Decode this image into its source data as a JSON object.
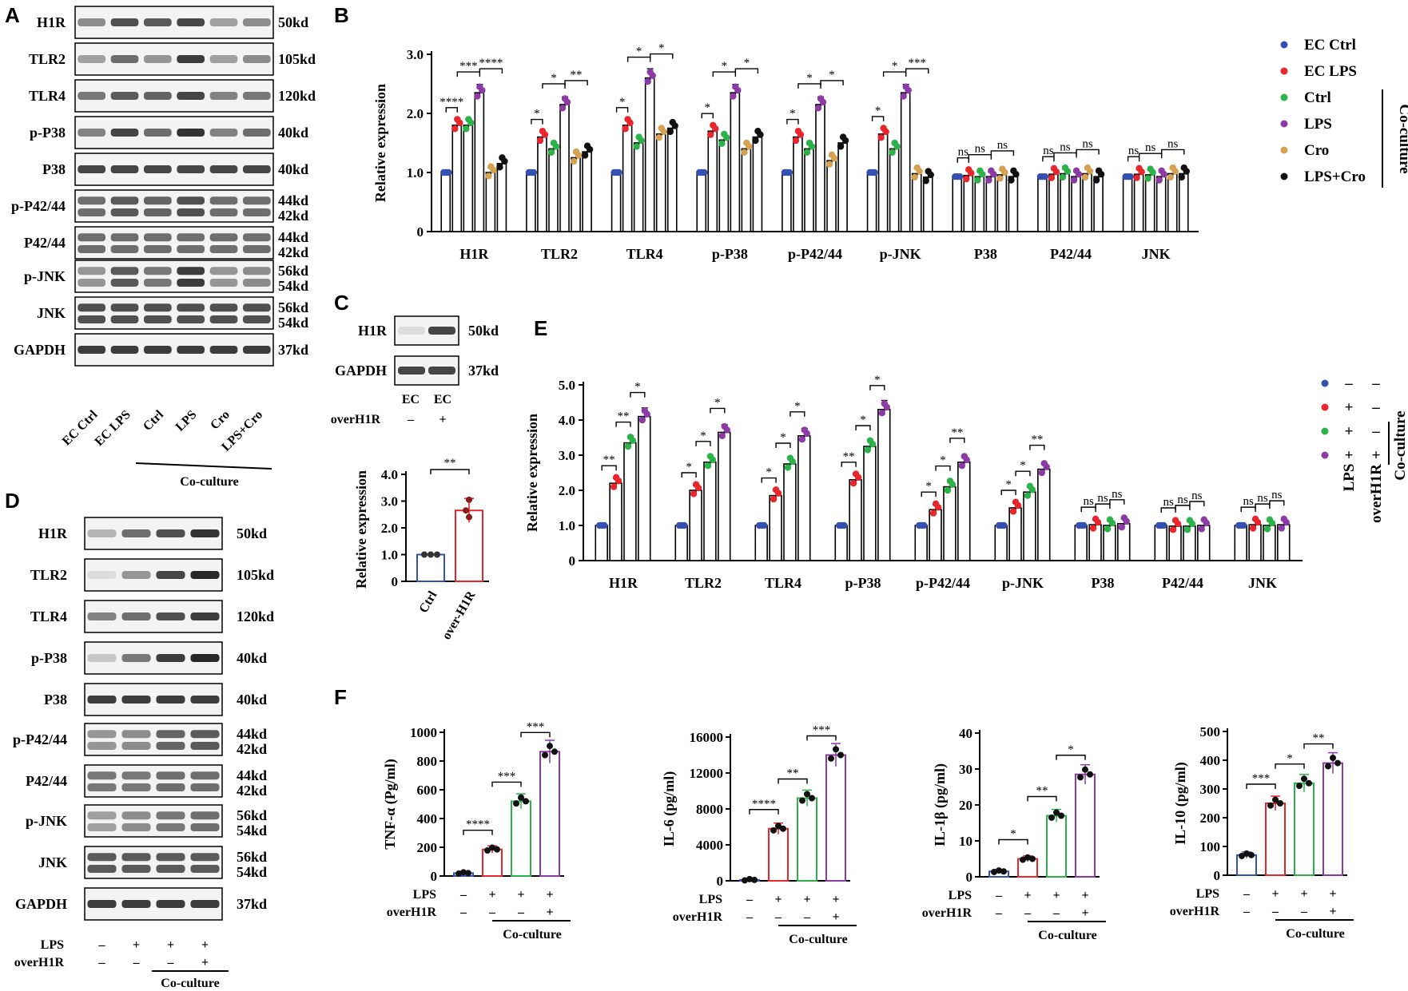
{
  "colors": {
    "ec_ctrl": "#3451b2",
    "ec_lps": "#e8262b",
    "ctrl": "#2bb34a",
    "lps": "#8b3aa6",
    "cro": "#d6a252",
    "lps_cro": "#111111",
    "f_ctrl": "#3451b2",
    "f_lps": "#e8262b",
    "f_cc": "#2bb34a",
    "f_over": "#8b3aa6"
  },
  "panels": {
    "A": {
      "letter": "A",
      "rows": [
        {
          "label": "H1R",
          "mw": [
            "50kd"
          ],
          "bands": 1
        },
        {
          "label": "TLR2",
          "mw": [
            "105kd"
          ],
          "bands": 1
        },
        {
          "label": "TLR4",
          "mw": [
            "120kd"
          ],
          "bands": 1
        },
        {
          "label": "p-P38",
          "mw": [
            "40kd"
          ],
          "bands": 1
        },
        {
          "label": "P38",
          "mw": [
            "40kd"
          ],
          "bands": 1
        },
        {
          "label": "p-P42/44",
          "mw": [
            "44kd",
            "42kd"
          ],
          "bands": 2
        },
        {
          "label": "P42/44",
          "mw": [
            "44kd",
            "42kd"
          ],
          "bands": 2
        },
        {
          "label": "p-JNK",
          "mw": [
            "56kd",
            "54kd"
          ],
          "bands": 2
        },
        {
          "label": "JNK",
          "mw": [
            "56kd",
            "54kd"
          ],
          "bands": 2
        },
        {
          "label": "GAPDH",
          "mw": [
            "37kd"
          ],
          "bands": 1
        }
      ],
      "lanes": [
        "EC Ctrl",
        "EC LPS",
        "Ctrl",
        "LPS",
        "Cro",
        "LPS+Cro"
      ],
      "group_label": "Co-culture"
    },
    "B": {
      "letter": "B",
      "legend": [
        "EC Ctrl",
        "EC LPS",
        "Ctrl",
        "LPS",
        "Cro",
        "LPS+Cro"
      ],
      "legend_group": "Co-culture"
    },
    "C": {
      "letter": "C",
      "blot_rows": [
        {
          "label": "H1R",
          "mw": "50kd"
        },
        {
          "label": "GAPDH",
          "mw": "37kd"
        }
      ],
      "lanes": [
        "EC",
        "EC"
      ],
      "over_label": "overH1R",
      "over_values": [
        "–",
        "+"
      ],
      "sig": "**"
    },
    "D": {
      "letter": "D",
      "rows": [
        {
          "label": "H1R",
          "mw": [
            "50kd"
          ],
          "bands": 1
        },
        {
          "label": "TLR2",
          "mw": [
            "105kd"
          ],
          "bands": 1
        },
        {
          "label": "TLR4",
          "mw": [
            "120kd"
          ],
          "bands": 1
        },
        {
          "label": "p-P38",
          "mw": [
            "40kd"
          ],
          "bands": 1
        },
        {
          "label": "P38",
          "mw": [
            "40kd"
          ],
          "bands": 1
        },
        {
          "label": "p-P42/44",
          "mw": [
            "44kd",
            "42kd"
          ],
          "bands": 2
        },
        {
          "label": "P42/44",
          "mw": [
            "44kd",
            "42kd"
          ],
          "bands": 2
        },
        {
          "label": "p-JNK",
          "mw": [
            "56kd",
            "54kd"
          ],
          "bands": 2
        },
        {
          "label": "JNK",
          "mw": [
            "56kd",
            "54kd"
          ],
          "bands": 2
        },
        {
          "label": "GAPDH",
          "mw": [
            "37kd"
          ],
          "bands": 1
        }
      ],
      "lps_label": "LPS",
      "over_label": "overH1R",
      "lps_values": [
        "–",
        "+",
        "+",
        "+"
      ],
      "over_values": [
        "–",
        "–",
        "–",
        "+"
      ],
      "group_label": "Co-culture"
    },
    "E": {
      "letter": "E",
      "legend_rows": [
        [
          "–",
          "–"
        ],
        [
          "+",
          "–"
        ],
        [
          "+",
          "–"
        ],
        [
          "+",
          "+"
        ]
      ],
      "legend_labels": [
        "LPS",
        "overH1R"
      ],
      "legend_group": "Co-culture"
    },
    "F": {
      "letter": "F",
      "lps_label": "LPS",
      "over_label": "overH1R",
      "lps_values": [
        "–",
        "+",
        "+",
        "+"
      ],
      "over_values": [
        "–",
        "–",
        "–",
        "+"
      ],
      "group_label": "Co-culture"
    }
  },
  "chart_data": [
    {
      "id": "B",
      "type": "bar",
      "ylabel": "Relative expression",
      "ylim": [
        0,
        3.0
      ],
      "yticks": [
        "0",
        "1.0",
        "2.0",
        "3.0"
      ],
      "categories": [
        "H1R",
        "TLR2",
        "TLR4",
        "p-P38",
        "p-P42/44",
        "p-JNK",
        "P38",
        "P42/44",
        "JNK"
      ],
      "series": [
        {
          "name": "EC Ctrl",
          "values": [
            1.0,
            1.0,
            1.0,
            1.0,
            1.0,
            1.0,
            0.93,
            0.93,
            0.93
          ]
        },
        {
          "name": "EC LPS",
          "values": [
            1.8,
            1.6,
            1.8,
            1.7,
            1.6,
            1.65,
            0.95,
            0.97,
            0.97
          ]
        },
        {
          "name": "Ctrl",
          "values": [
            1.8,
            1.4,
            1.5,
            1.55,
            1.4,
            1.4,
            0.93,
            0.98,
            0.96
          ]
        },
        {
          "name": "LPS",
          "values": [
            2.35,
            2.15,
            2.6,
            2.35,
            2.15,
            2.35,
            0.93,
            0.93,
            0.93
          ]
        },
        {
          "name": "Cro",
          "values": [
            1.0,
            1.25,
            1.65,
            1.4,
            1.2,
            0.98,
            0.96,
            0.98,
            0.98
          ]
        },
        {
          "name": "LPS+Cro",
          "values": [
            1.15,
            1.35,
            1.75,
            1.6,
            1.5,
            0.92,
            0.93,
            0.93,
            0.98
          ]
        }
      ],
      "sig": [
        [
          "****",
          "***",
          "****"
        ],
        [
          "*",
          "*",
          "**"
        ],
        [
          "*",
          "*",
          "*"
        ],
        [
          "*",
          "*",
          "*"
        ],
        [
          "*",
          "*",
          "*"
        ],
        [
          "*",
          "*",
          "***"
        ],
        [
          "ns",
          "ns",
          "ns"
        ],
        [
          "ns",
          "ns",
          "ns"
        ],
        [
          "ns",
          "ns",
          "ns"
        ]
      ]
    },
    {
      "id": "C",
      "type": "bar",
      "ylabel": "Relative expression",
      "ylim": [
        0,
        4.0
      ],
      "yticks": [
        "0",
        "1.0",
        "2.0",
        "3.0",
        "4.0"
      ],
      "categories": [
        "Ctrl",
        "over-H1R"
      ],
      "values": [
        1.0,
        2.65
      ],
      "sig": "**"
    },
    {
      "id": "E",
      "type": "bar",
      "ylabel": "Relative expression",
      "ylim": [
        0,
        5.0
      ],
      "yticks": [
        "0",
        "1.0",
        "2.0",
        "3.0",
        "4.0",
        "5.0"
      ],
      "categories": [
        "H1R",
        "TLR2",
        "TLR4",
        "p-P38",
        "p-P42/44",
        "p-JNK",
        "P38",
        "P42/44",
        "JNK"
      ],
      "series": [
        {
          "name": "LPS– overH1R–",
          "values": [
            1.0,
            1.0,
            1.0,
            1.0,
            1.0,
            1.0,
            1.0,
            1.0,
            1.0
          ]
        },
        {
          "name": "LPS+ overH1R–",
          "values": [
            2.2,
            2.0,
            1.85,
            2.3,
            1.45,
            1.5,
            1.02,
            0.98,
            1.02
          ]
        },
        {
          "name": "Co-culture LPS+ overH1R–",
          "values": [
            3.35,
            2.8,
            2.75,
            3.25,
            2.1,
            1.95,
            1.0,
            0.98,
            1.0
          ]
        },
        {
          "name": "Co-culture LPS+ overH1R+",
          "values": [
            4.1,
            3.65,
            3.55,
            4.3,
            2.8,
            2.6,
            1.05,
            1.0,
            1.02
          ]
        }
      ],
      "sig": [
        [
          "**",
          "**",
          "*"
        ],
        [
          "*",
          "*",
          "*"
        ],
        [
          "*",
          "*",
          "*"
        ],
        [
          "**",
          "*",
          "*"
        ],
        [
          "*",
          "*",
          "**"
        ],
        [
          "*",
          "*",
          "**"
        ],
        [
          "ns",
          "ns",
          "ns"
        ],
        [
          "ns",
          "ns",
          "ns"
        ],
        [
          "ns",
          "ns",
          "ns"
        ]
      ]
    },
    {
      "id": "F1",
      "type": "bar",
      "ylabel": "TNF-α (Pg/ml)",
      "ylim": [
        0,
        1000
      ],
      "yticks": [
        "0",
        "200",
        "400",
        "600",
        "800",
        "1000"
      ],
      "values": [
        20,
        185,
        520,
        865
      ],
      "sig": [
        "****",
        "***",
        "***"
      ]
    },
    {
      "id": "F2",
      "type": "bar",
      "ylabel": "IL-6 (pg/ml)",
      "ylim": [
        0,
        16000
      ],
      "yticks": [
        "0",
        "4000",
        "8000",
        "12000",
        "16000"
      ],
      "values": [
        100,
        5800,
        9200,
        14000
      ],
      "sig": [
        "****",
        "**",
        "***"
      ]
    },
    {
      "id": "F3",
      "type": "bar",
      "ylabel": "IL-1β (pg/ml)",
      "ylim": [
        0,
        40
      ],
      "yticks": [
        "0",
        "10",
        "20",
        "30",
        "40"
      ],
      "values": [
        1.5,
        5,
        17,
        28.5
      ],
      "sig": [
        "*",
        "**",
        "*"
      ]
    },
    {
      "id": "F4",
      "type": "bar",
      "ylabel": "IL-10 (pg/ml)",
      "ylim": [
        0,
        500
      ],
      "yticks": [
        "0",
        "100",
        "200",
        "300",
        "400",
        "500"
      ],
      "values": [
        70,
        250,
        320,
        390
      ],
      "sig": [
        "***",
        "*",
        "**"
      ]
    }
  ]
}
